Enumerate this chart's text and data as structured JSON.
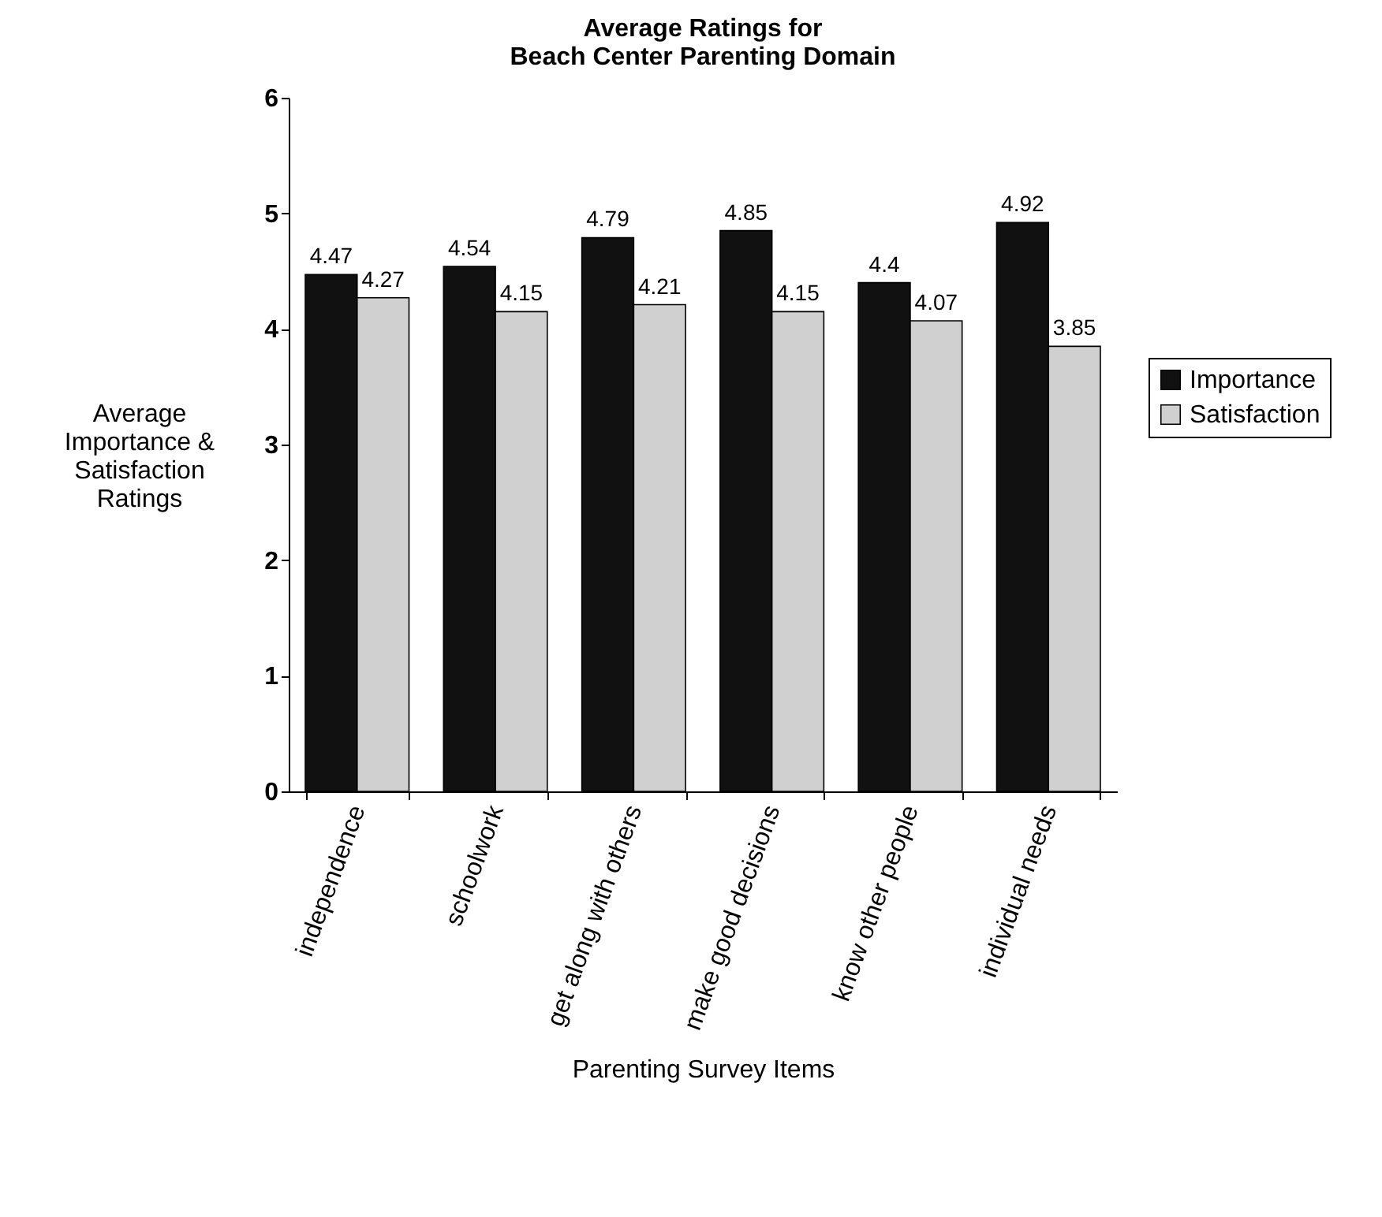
{
  "chart_data": {
    "type": "bar",
    "title": "Average Ratings for\nBeach Center Parenting Domain",
    "xlabel": "Parenting Survey Items",
    "ylabel": "Average\nImportance &\nSatisfaction\nRatings",
    "categories": [
      "independence",
      "schoolwork",
      "get along with others",
      "make good decisions",
      "know other people",
      "individual needs"
    ],
    "series": [
      {
        "name": "Importance",
        "color": "#111111",
        "values": [
          4.47,
          4.54,
          4.79,
          4.85,
          4.4,
          4.92
        ]
      },
      {
        "name": "Satisfaction",
        "color": "#d0d0d0",
        "values": [
          4.27,
          4.15,
          4.21,
          4.15,
          4.07,
          3.85
        ]
      }
    ],
    "ylim": [
      0,
      6
    ],
    "yticks": [
      0,
      1,
      2,
      3,
      4,
      5,
      6
    ],
    "grid": false,
    "legend": "right",
    "data_labels": true
  }
}
